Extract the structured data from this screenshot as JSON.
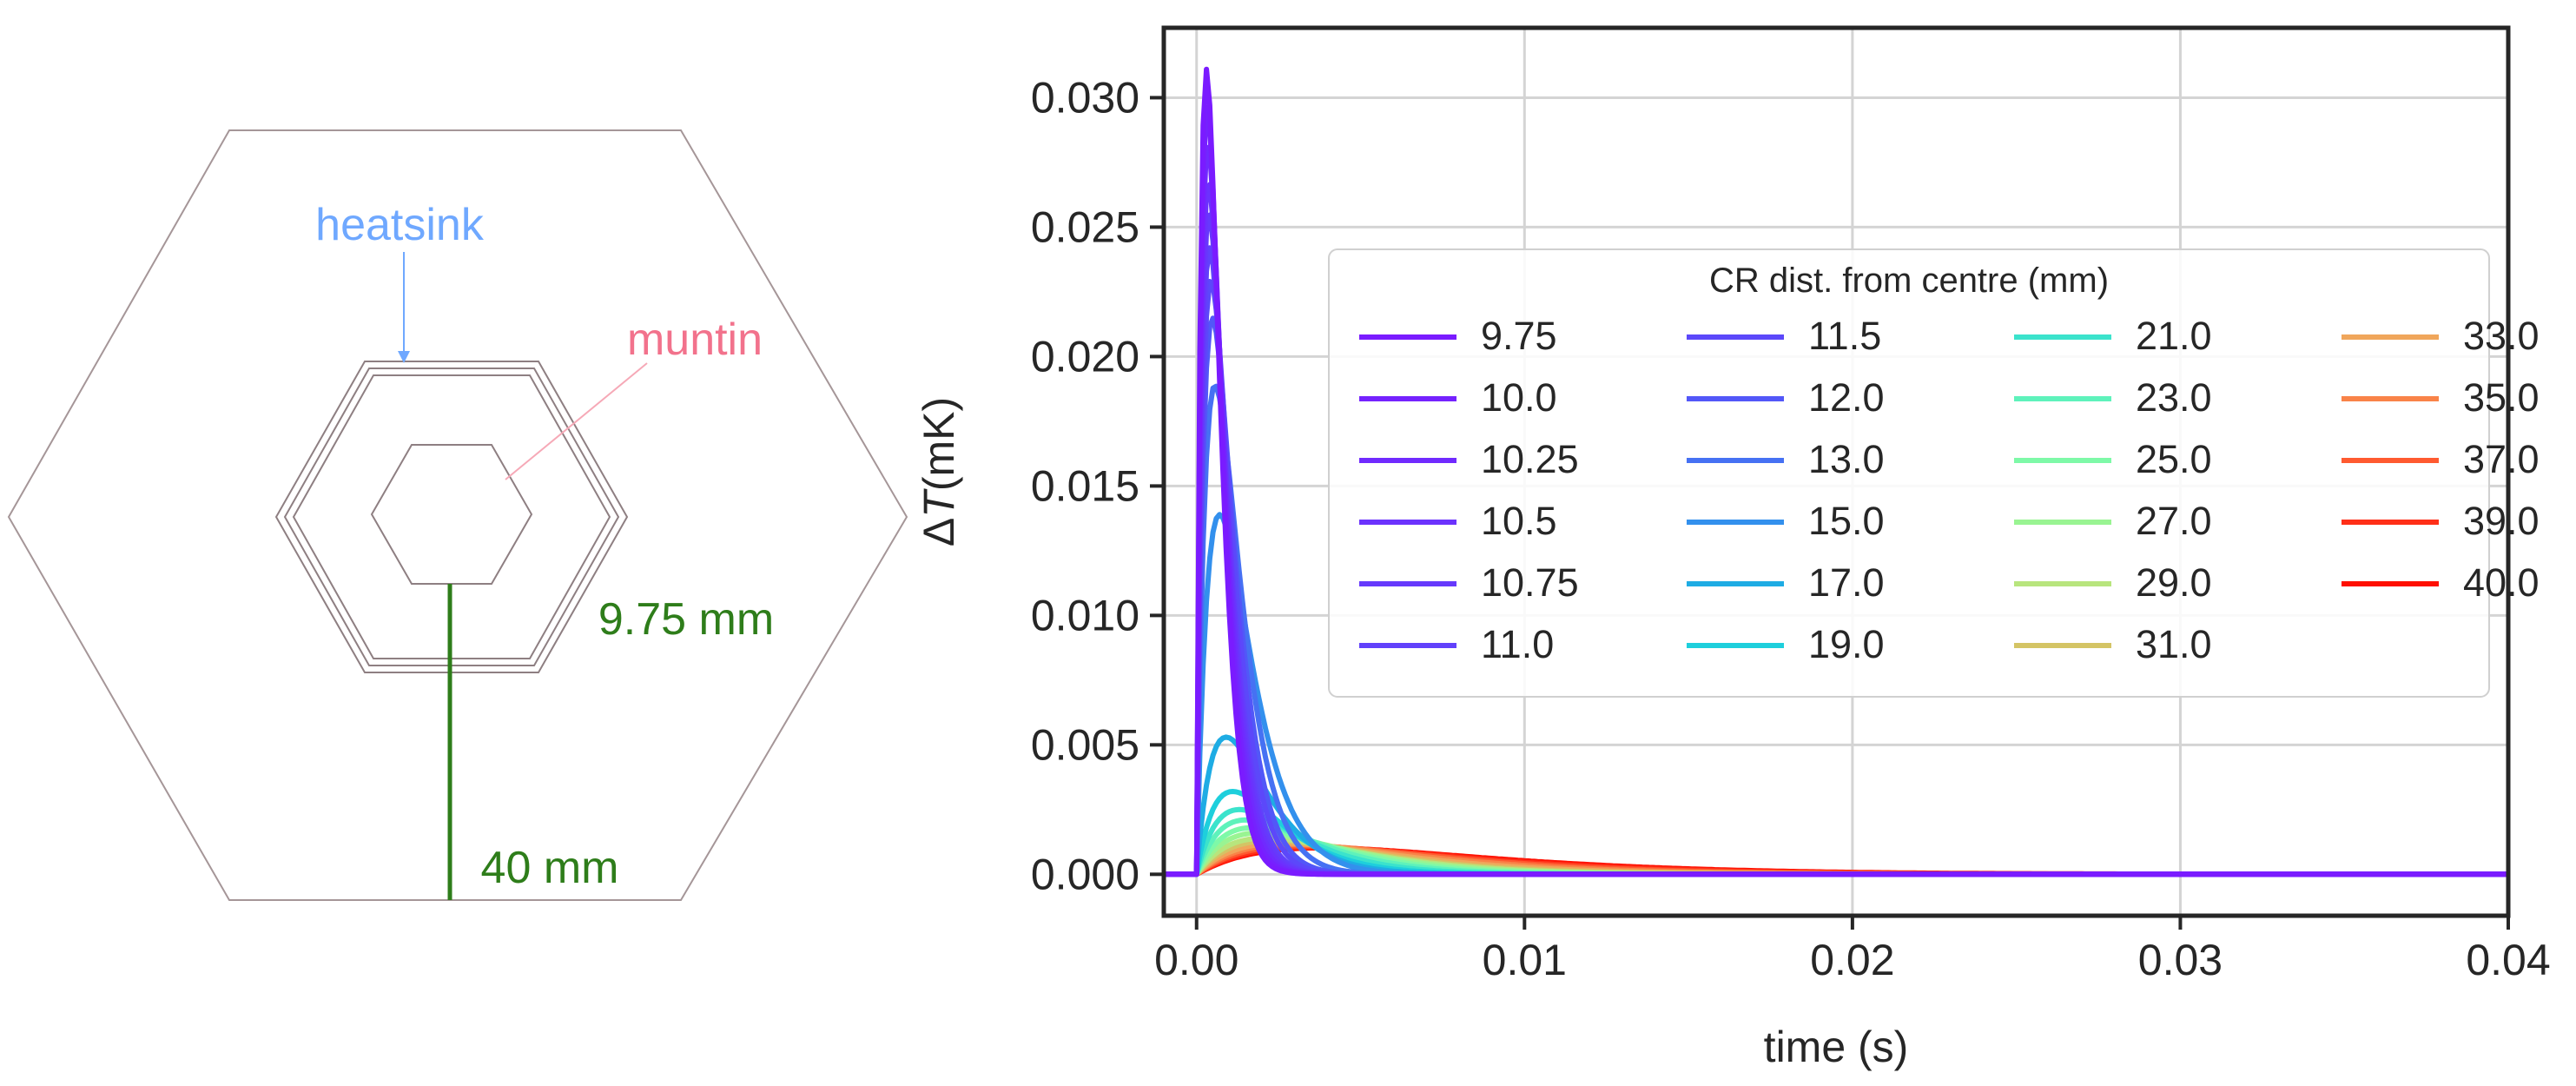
{
  "diagram": {
    "heatsink_label": "heatsink",
    "muntin_label": "muntin",
    "inner_dim_label": "9.75 mm",
    "outer_dim_label": "40 mm",
    "colors": {
      "heatsink": "#6fa8ff",
      "muntin": "#f2728c",
      "dimension": "#2e7d1a",
      "outline": "#a59698"
    }
  },
  "chart_data": {
    "type": "line",
    "ylabel_delta": "Δ",
    "ylabel_var": "T",
    "ylabel_unit": "(mK)",
    "xlabel": "time (s)",
    "xlim": [
      -0.001,
      0.04
    ],
    "ylim": [
      -0.0016,
      0.0327
    ],
    "x_ticks": [
      "0.00",
      "0.01",
      "0.02",
      "0.03",
      "0.04"
    ],
    "x_tick_values": [
      0,
      0.01,
      0.02,
      0.03,
      0.04
    ],
    "y_ticks": [
      "0.000",
      "0.005",
      "0.010",
      "0.015",
      "0.020",
      "0.025",
      "0.030"
    ],
    "y_tick_values": [
      0,
      0.005,
      0.01,
      0.015,
      0.02,
      0.025,
      0.03
    ],
    "grid": true,
    "legend": {
      "title": "CR dist. from centre (mm)",
      "placement": "upper right",
      "columns": 4
    },
    "series": [
      {
        "name": "9.75",
        "color": "#7a1bff",
        "peak_time": 0.0003,
        "peak_value": 0.0311
      },
      {
        "name": "10.0",
        "color": "#7522fe",
        "peak_time": 0.00032,
        "peak_value": 0.0297
      },
      {
        "name": "10.25",
        "color": "#702afe",
        "peak_time": 0.00034,
        "peak_value": 0.0283
      },
      {
        "name": "10.5",
        "color": "#6b32fd",
        "peak_time": 0.00036,
        "peak_value": 0.0268
      },
      {
        "name": "10.75",
        "color": "#6639fc",
        "peak_time": 0.00038,
        "peak_value": 0.0255
      },
      {
        "name": "11.0",
        "color": "#6141fb",
        "peak_time": 0.0004,
        "peak_value": 0.0242
      },
      {
        "name": "11.5",
        "color": "#5c48fa",
        "peak_time": 0.00044,
        "peak_value": 0.023
      },
      {
        "name": "12.0",
        "color": "#5257f8",
        "peak_time": 0.00048,
        "peak_value": 0.0215
      },
      {
        "name": "13.0",
        "color": "#4671f3",
        "peak_time": 0.00056,
        "peak_value": 0.0189
      },
      {
        "name": "15.0",
        "color": "#3390ed",
        "peak_time": 0.0007,
        "peak_value": 0.0139
      },
      {
        "name": "17.0",
        "color": "#1eace4",
        "peak_time": 0.0009,
        "peak_value": 0.0053
      },
      {
        "name": "19.0",
        "color": "#1ecfdc",
        "peak_time": 0.0011,
        "peak_value": 0.0032
      },
      {
        "name": "21.0",
        "color": "#3be3cc",
        "peak_time": 0.0013,
        "peak_value": 0.0025
      },
      {
        "name": "23.0",
        "color": "#5ef2bb",
        "peak_time": 0.0015,
        "peak_value": 0.0021
      },
      {
        "name": "25.0",
        "color": "#7ef9a8",
        "peak_time": 0.0017,
        "peak_value": 0.0018
      },
      {
        "name": "27.0",
        "color": "#99f492",
        "peak_time": 0.0019,
        "peak_value": 0.0016
      },
      {
        "name": "29.0",
        "color": "#b8e57d",
        "peak_time": 0.0021,
        "peak_value": 0.0014
      },
      {
        "name": "31.0",
        "color": "#d4c465",
        "peak_time": 0.0023,
        "peak_value": 0.0013
      },
      {
        "name": "33.0",
        "color": "#f0a65b",
        "peak_time": 0.0026,
        "peak_value": 0.0012
      },
      {
        "name": "35.0",
        "color": "#f98348",
        "peak_time": 0.0029,
        "peak_value": 0.00115
      },
      {
        "name": "37.0",
        "color": "#ff5a30",
        "peak_time": 0.0032,
        "peak_value": 0.0011
      },
      {
        "name": "39.0",
        "color": "#ff2f18",
        "peak_time": 0.0035,
        "peak_value": 0.00105
      },
      {
        "name": "40.0",
        "color": "#ff0f00",
        "peak_time": 0.0038,
        "peak_value": 0.00102
      }
    ]
  }
}
